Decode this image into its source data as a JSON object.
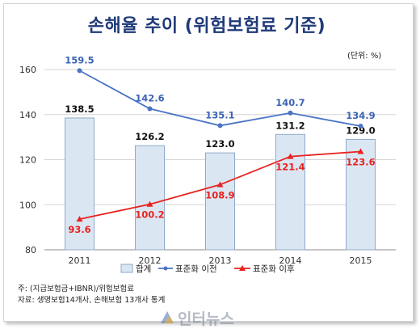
{
  "chart_data": {
    "type": "bar",
    "title": "손해율 추이 (위험보험료 기준)",
    "unit_note": "(단위: %)",
    "categories": [
      "2011",
      "2012",
      "2013",
      "2014",
      "2015"
    ],
    "ylim": [
      80,
      160
    ],
    "yticks": [
      80,
      100,
      120,
      140,
      160
    ],
    "grid": "horizontal",
    "legend_position": "bottom",
    "series": [
      {
        "name": "합계",
        "type": "bar",
        "color": "#dbe6f3",
        "edge": "#8fa9c9",
        "values": [
          138.5,
          126.2,
          123.0,
          131.2,
          129.0
        ],
        "labels": [
          "138.5",
          "126.2",
          "123.0",
          "131.2",
          "129.0"
        ]
      },
      {
        "name": "표준화 이전",
        "type": "line",
        "color": "#4a74c4",
        "marker": "circle",
        "values": [
          159.5,
          142.6,
          135.1,
          140.7,
          134.9
        ],
        "labels": [
          "159.5",
          "142.6",
          "135.1",
          "140.7",
          "134.9"
        ]
      },
      {
        "name": "표준화 이후",
        "type": "line",
        "color": "#e8231f",
        "marker": "triangle",
        "values": [
          93.6,
          100.2,
          108.9,
          121.4,
          123.6
        ],
        "labels": [
          "93.6",
          "100.2",
          "108.9",
          "121.4",
          "123.6"
        ]
      }
    ]
  },
  "footnotes": {
    "note": "주: (지급보험금+IBNR)/위험보험료",
    "source": "자료: 생명보험14개사, 손해보험 13개사 통계"
  },
  "watermark": {
    "text": "인터뉴스",
    "color": "#8a93a6"
  }
}
